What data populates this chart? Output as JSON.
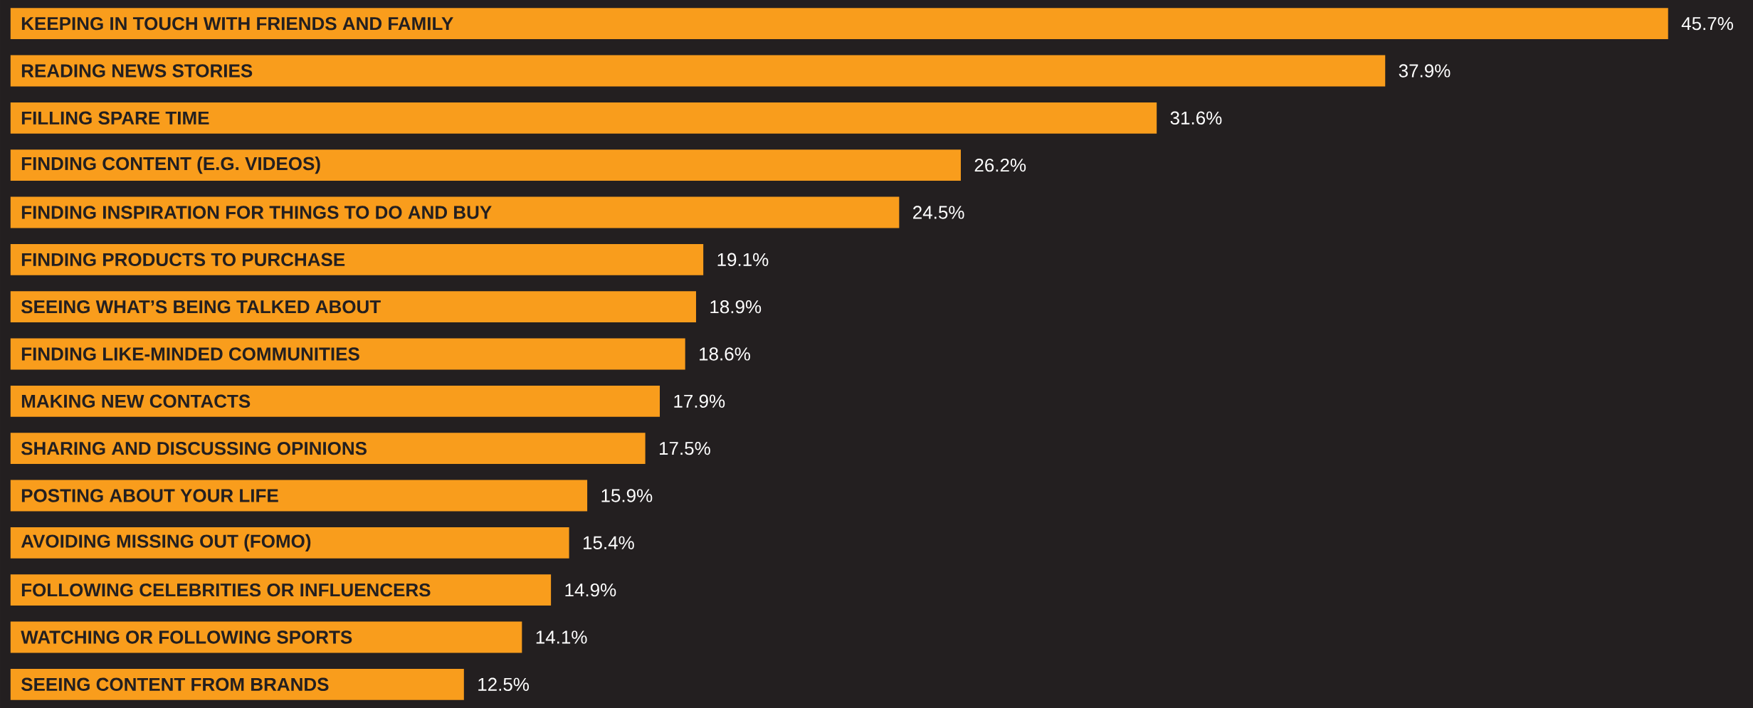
{
  "chart_data": {
    "type": "bar",
    "orientation": "horizontal",
    "color": "#f99d1c",
    "categories": [
      "KEEPING IN TOUCH WITH FRIENDS AND FAMILY",
      "READING NEWS STORIES",
      "FILLING SPARE TIME",
      "FINDING CONTENT (E.G. VIDEOS)",
      "FINDING INSPIRATION FOR THINGS TO DO AND BUY",
      "FINDING PRODUCTS TO PURCHASE",
      "SEEING WHAT’S BEING TALKED ABOUT",
      "FINDING LIKE-MINDED COMMUNITIES",
      "MAKING NEW CONTACTS",
      "SHARING AND DISCUSSING OPINIONS",
      "POSTING ABOUT YOUR LIFE",
      "AVOIDING MISSING OUT (FOMO)",
      "FOLLOWING CELEBRITIES OR INFLUENCERS",
      "WATCHING OR FOLLOWING SPORTS",
      "SEEING CONTENT FROM BRANDS"
    ],
    "values": [
      45.7,
      37.9,
      31.6,
      26.2,
      24.5,
      19.1,
      18.9,
      18.6,
      17.9,
      17.5,
      15.9,
      15.4,
      14.9,
      14.1,
      12.5
    ],
    "value_labels": [
      "45.7%",
      "37.9%",
      "31.6%",
      "26.2%",
      "24.5%",
      "19.1%",
      "18.9%",
      "18.6%",
      "17.9%",
      "17.5%",
      "15.9%",
      "15.4%",
      "14.9%",
      "14.1%",
      "12.5%"
    ]
  }
}
